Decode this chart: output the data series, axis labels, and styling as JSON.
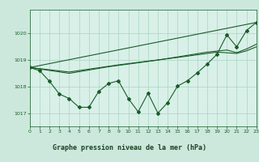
{
  "title": "Graphe pression niveau de la mer (hPa)",
  "bg_color": "#cce8dc",
  "plot_bg_color": "#d8f0e8",
  "label_bg_color": "#5aaa78",
  "grid_color": "#aad4c0",
  "line_color": "#1a5c2a",
  "text_color": "#1a5c2a",
  "label_text_color": "#1a4020",
  "xlim": [
    0,
    23
  ],
  "ylim": [
    1016.5,
    1020.9
  ],
  "yticks": [
    1017,
    1018,
    1019,
    1020
  ],
  "xtick_labels": [
    "0",
    "1",
    "2",
    "3",
    "4",
    "5",
    "6",
    "7",
    "8",
    "9",
    "10",
    "11",
    "12",
    "13",
    "14",
    "15",
    "16",
    "17",
    "18",
    "19",
    "20",
    "21",
    "22",
    "23"
  ],
  "series_jagged": {
    "x": [
      0,
      1,
      2,
      3,
      4,
      5,
      6,
      7,
      8,
      9,
      10,
      11,
      12,
      13,
      14,
      15,
      16,
      17,
      18,
      19,
      20,
      21,
      22,
      23
    ],
    "y": [
      1018.72,
      1018.6,
      1018.2,
      1017.72,
      1017.55,
      1017.22,
      1017.22,
      1017.82,
      1018.12,
      1018.22,
      1017.55,
      1017.05,
      1017.75,
      1017.0,
      1017.4,
      1018.02,
      1018.22,
      1018.52,
      1018.85,
      1019.22,
      1019.95,
      1019.5,
      1020.12,
      1020.42
    ]
  },
  "series_trend1": {
    "x": [
      0,
      23
    ],
    "y": [
      1018.72,
      1020.42
    ]
  },
  "series_trend2": {
    "x": [
      0,
      4,
      9,
      15,
      19,
      21,
      22,
      23
    ],
    "y": [
      1018.72,
      1018.55,
      1018.82,
      1019.1,
      1019.3,
      1019.25,
      1019.35,
      1019.5
    ]
  },
  "series_trend3": {
    "x": [
      0,
      4,
      8,
      13,
      18,
      20,
      21,
      22,
      23
    ],
    "y": [
      1018.72,
      1018.5,
      1018.75,
      1019.0,
      1019.3,
      1019.38,
      1019.28,
      1019.42,
      1019.6
    ]
  }
}
